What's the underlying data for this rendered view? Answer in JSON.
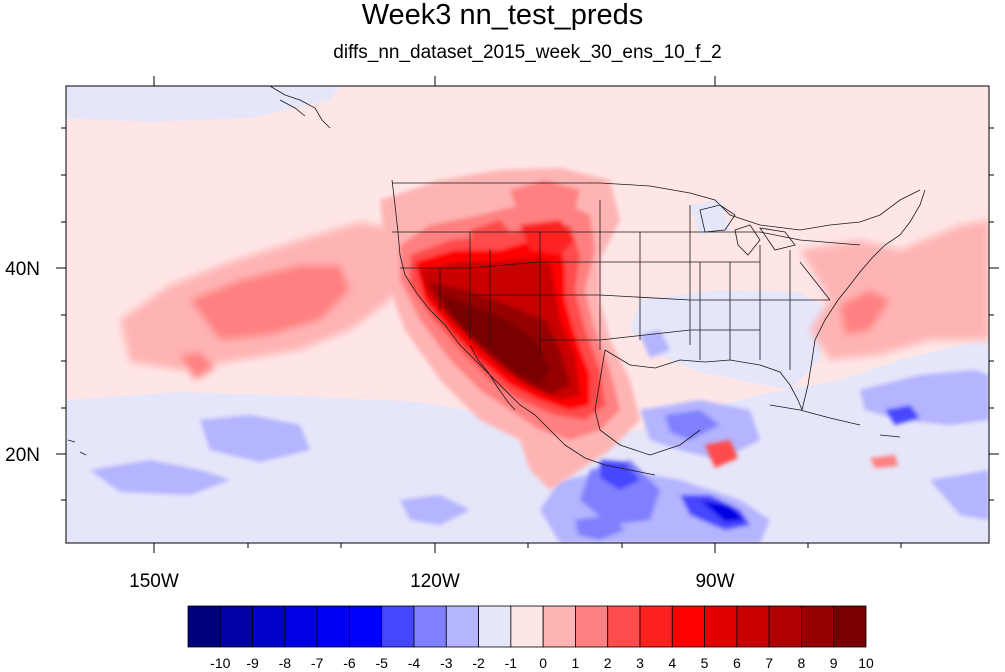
{
  "title": "Week3 nn_test_preds",
  "subtitle": "diffs_nn_dataset_2015_week_30_ens_10_f_2",
  "lon_labels": [
    "150W",
    "120W",
    "90W"
  ],
  "lat_labels": [
    "40N",
    "20N"
  ],
  "colorbar": {
    "labels": [
      "-10",
      "-9",
      "-8",
      "-7",
      "-6",
      "-5",
      "-4",
      "-3",
      "-2",
      "-1",
      "0",
      "1",
      "2",
      "3",
      "4",
      "5",
      "6",
      "7",
      "8",
      "9",
      "10"
    ],
    "colors": [
      "#00007f",
      "#0000a4",
      "#0000c8",
      "#0000e4",
      "#0000f5",
      "#0000ff",
      "#4646ff",
      "#8080ff",
      "#b4b4ff",
      "#e6e6fa",
      "#ffe6e6",
      "#ffb4b4",
      "#ff8080",
      "#ff4c4c",
      "#ff2020",
      "#ff0000",
      "#e00000",
      "#c80000",
      "#b00000",
      "#960000",
      "#780000"
    ]
  }
}
